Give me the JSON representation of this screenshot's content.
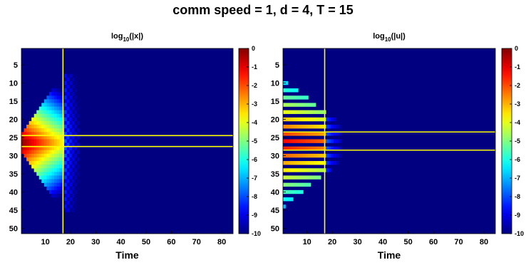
{
  "figure_title": "comm speed = 1, d = 4, T = 15",
  "chart_data": [
    {
      "type": "heatmap",
      "title_base": "log",
      "title_sub": "10",
      "title_arg": "(|x|)",
      "xlabel": "Time",
      "ylabel": "",
      "xlim": [
        0.5,
        84.5
      ],
      "ylim": [
        0.5,
        51.5
      ],
      "y_reversed": true,
      "xticks": [
        "10",
        "20",
        "30",
        "40",
        "50",
        "60",
        "70",
        "80"
      ],
      "yticks": [
        "5",
        "10",
        "15",
        "20",
        "25",
        "30",
        "35",
        "40",
        "45",
        "50"
      ],
      "colorbar": {
        "colormap": "jet",
        "range": [
          -10,
          0
        ],
        "ticks": [
          "0",
          "-1",
          "-2",
          "-3",
          "-4",
          "-5",
          "-6",
          "-7",
          "-8",
          "-9",
          "-10"
        ]
      },
      "hlines": [
        24.5,
        27.5
      ],
      "vline": 17,
      "values_desc": "Rows 26-27 at t=1..16: near 0 at left fading to -5; diamond of decaying values spreads one row per step outward; beyond t=17 sparse blue cells down to ~ -9; elsewhere -10",
      "center_rows": [
        26,
        27
      ],
      "half_width_at_start": 2,
      "spread_per_step": 1,
      "max_time": 23
    },
    {
      "type": "heatmap",
      "title_base": "log",
      "title_sub": "10",
      "title_arg": "(|u|)",
      "xlabel": "Time",
      "ylabel": "",
      "xlim": [
        0.5,
        84.5
      ],
      "ylim": [
        0.5,
        51.5
      ],
      "y_reversed": true,
      "xticks": [
        "10",
        "20",
        "30",
        "40",
        "50",
        "60",
        "70",
        "80"
      ],
      "yticks": [
        "5",
        "10",
        "15",
        "20",
        "25",
        "30",
        "35",
        "40",
        "45",
        "50"
      ],
      "colorbar": {
        "colormap": "jet",
        "range": [
          -10,
          0
        ],
        "ticks": [
          "0",
          "-1",
          "-2",
          "-3",
          "-4",
          "-5",
          "-6",
          "-7",
          "-8",
          "-9",
          "-10"
        ]
      },
      "hlines": [
        23.5,
        28.5
      ],
      "vline": 17,
      "values_desc": "Striped triangular pattern (every other row) from t=1..23, strongest (~ -1) near rows 25-27 and early times",
      "center_rows": [
        26,
        27
      ],
      "max_time": 23
    }
  ]
}
